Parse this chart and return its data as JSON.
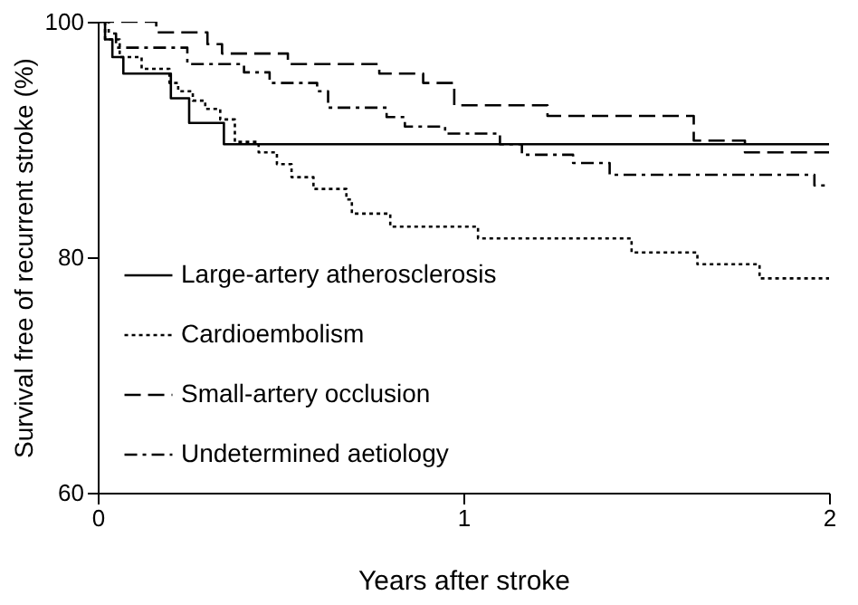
{
  "chart_data": {
    "type": "step",
    "xlabel": "Years after stroke",
    "ylabel": "Survival free of recurrent stroke (%)",
    "xlim": [
      0,
      2
    ],
    "xticks": [
      0,
      1,
      2
    ],
    "ylim": [
      60,
      100
    ],
    "yticks": [
      60,
      80,
      100
    ],
    "grid": false,
    "legend": "bottom left",
    "series": [
      {
        "name": "Large-artery atherosclerosis",
        "color": "#000000",
        "line_style": "solid",
        "x": [
          0,
          0.02,
          0.04,
          0.07,
          0.2,
          0.25,
          0.345,
          2
        ],
        "values": [
          100,
          98.5,
          97,
          95.6,
          93.5,
          91.4,
          89.6,
          89.6
        ]
      },
      {
        "name": "Cardioembolism",
        "color": "#000000",
        "line_style": "dotted",
        "x": [
          0,
          0.02,
          0.06,
          0.12,
          0.196,
          0.22,
          0.26,
          0.294,
          0.335,
          0.375,
          0.44,
          0.49,
          0.53,
          0.59,
          0.68,
          0.695,
          0.8,
          1.04,
          1.46,
          1.64,
          1.81,
          2
        ],
        "values": [
          100,
          98.5,
          97,
          96,
          94.8,
          94.1,
          93.3,
          92.6,
          91.7,
          89.8,
          88.9,
          87.9,
          86.8,
          85.8,
          84.9,
          83.7,
          82.6,
          81.6,
          80.4,
          79.4,
          78.2,
          78.2
        ]
      },
      {
        "name": "Small-artery occlusion",
        "color": "#000000",
        "line_style": "dashed",
        "x": [
          0,
          0.16,
          0.3,
          0.34,
          0.52,
          0.77,
          0.89,
          0.975,
          1.23,
          1.63,
          1.77,
          2
        ],
        "values": [
          100,
          99.1,
          98.1,
          97.3,
          96.4,
          95.6,
          94.8,
          92.9,
          92,
          89.9,
          88.9,
          88.9
        ]
      },
      {
        "name": "Undetermined aetiology",
        "color": "#000000",
        "line_style": "dashdot",
        "x": [
          0,
          0.03,
          0.05,
          0.245,
          0.4,
          0.47,
          0.6,
          0.63,
          0.79,
          0.84,
          0.95,
          1.1,
          1.16,
          1.3,
          1.4,
          1.96,
          2
        ],
        "values": [
          100,
          99,
          97.8,
          96.4,
          95.7,
          94.8,
          94.1,
          92.7,
          91.9,
          91.1,
          90.5,
          89.6,
          88.7,
          88,
          87,
          86.1,
          86.1
        ]
      }
    ]
  }
}
